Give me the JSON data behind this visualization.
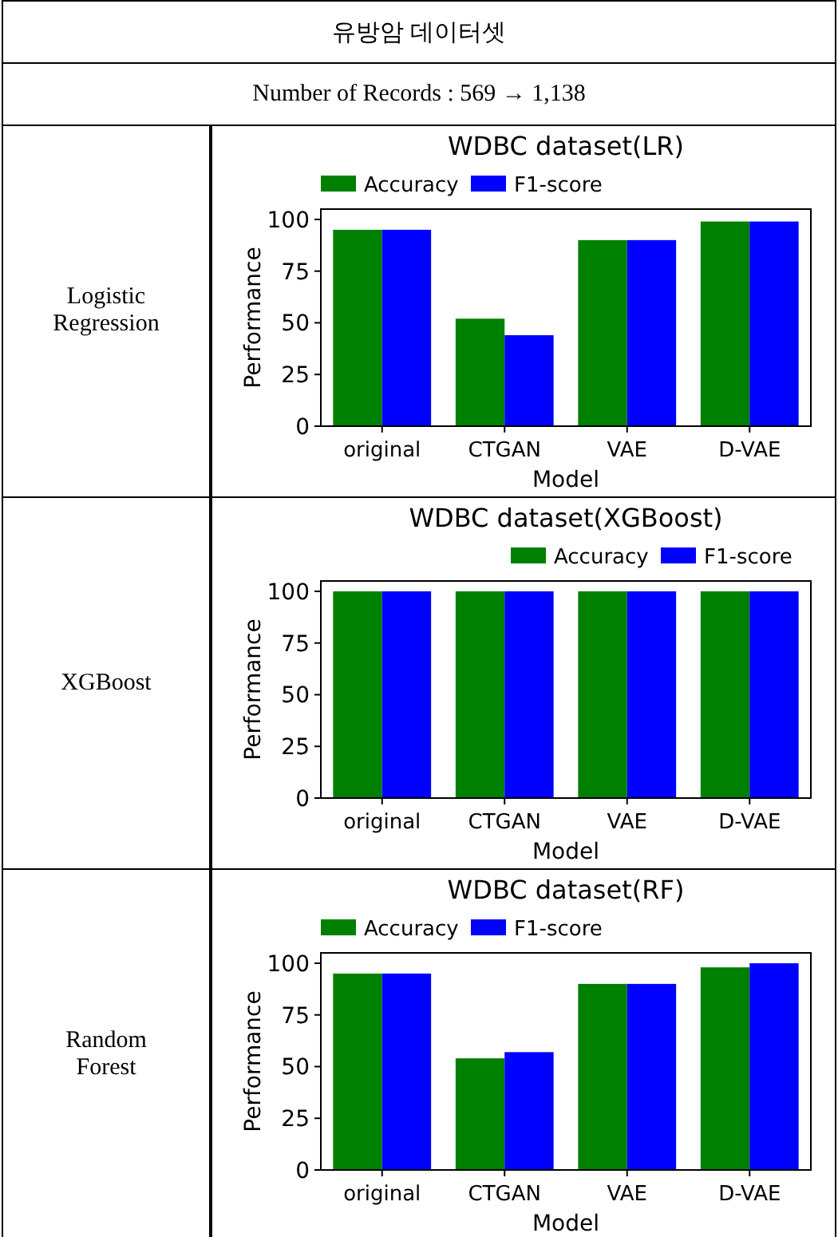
{
  "chart_data": [
    {
      "type": "other",
      "title": "유방암 데이터셋",
      "subtitle": "Number of Records : 569 → 1,138"
    },
    {
      "type": "bar",
      "title": "WDBC dataset(LR)",
      "xlabel": "Model",
      "ylabel": "Performance",
      "annotations": [
        "Logistic Regression"
      ],
      "categories": [
        "original",
        "CTGAN",
        "VAE",
        "D-VAE"
      ],
      "series": [
        {
          "name": "Accuracy",
          "color": "#008000",
          "values": [
            95,
            52,
            90,
            99
          ]
        },
        {
          "name": "F1-score",
          "color": "#0000ff",
          "values": [
            95,
            44,
            90,
            99
          ]
        }
      ],
      "ylim": [
        0,
        105
      ],
      "yticks": [
        0,
        25,
        50,
        75,
        100
      ],
      "legend": "top left"
    },
    {
      "type": "bar",
      "title": "WDBC dataset(XGBoost)",
      "xlabel": "Model",
      "ylabel": "Performance",
      "annotations": [
        "XGBoost"
      ],
      "categories": [
        "original",
        "CTGAN",
        "VAE",
        "D-VAE"
      ],
      "series": [
        {
          "name": "Accuracy",
          "color": "#008000",
          "values": [
            100,
            100,
            100,
            100
          ]
        },
        {
          "name": "F1-score",
          "color": "#0000ff",
          "values": [
            100,
            100,
            100,
            100
          ]
        }
      ],
      "ylim": [
        0,
        105
      ],
      "yticks": [
        0,
        25,
        50,
        75,
        100
      ],
      "legend": "top right"
    },
    {
      "type": "bar",
      "title": "WDBC dataset(RF)",
      "xlabel": "Model",
      "ylabel": "Performance",
      "annotations": [
        "Random Forest"
      ],
      "categories": [
        "original",
        "CTGAN",
        "VAE",
        "D-VAE"
      ],
      "series": [
        {
          "name": "Accuracy",
          "color": "#008000",
          "values": [
            95,
            54,
            90,
            98
          ]
        },
        {
          "name": "F1-score",
          "color": "#0000ff",
          "values": [
            95,
            57,
            90,
            100
          ]
        }
      ],
      "ylim": [
        0,
        105
      ],
      "yticks": [
        0,
        25,
        50,
        75,
        100
      ],
      "legend": "top left"
    }
  ]
}
